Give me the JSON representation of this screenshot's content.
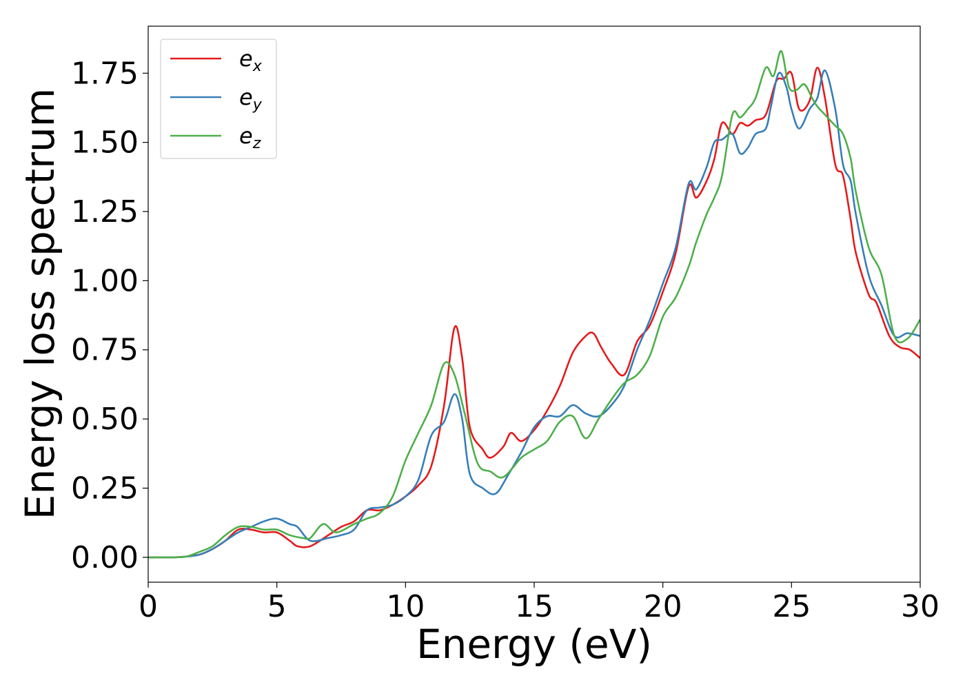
{
  "chart_data": {
    "type": "line",
    "xlabel": "Energy (eV)",
    "ylabel": "Energy loss spectrum",
    "xlim": [
      0,
      30
    ],
    "ylim": [
      -0.09,
      1.92
    ],
    "xticks": [
      0,
      5,
      10,
      15,
      20,
      25,
      30
    ],
    "xtick_labels": [
      "0",
      "5",
      "10",
      "15",
      "20",
      "25",
      "30"
    ],
    "yticks": [
      0,
      0.25,
      0.5,
      0.75,
      1.0,
      1.25,
      1.5,
      1.75
    ],
    "ytick_labels": [
      "0.00",
      "0.25",
      "0.50",
      "0.75",
      "1.00",
      "1.25",
      "1.50",
      "1.75"
    ],
    "grid": false,
    "legend_position": "top-left",
    "series": [
      {
        "name": "e_x",
        "legend_main": "e",
        "legend_sub": "x",
        "color": "#e41a1c",
        "x": [
          0,
          1,
          1.5,
          2,
          2.5,
          3,
          3.5,
          4,
          4.5,
          5,
          5.5,
          5.8,
          6.3,
          7,
          7.5,
          8,
          8.5,
          9,
          9.5,
          10,
          10.5,
          11,
          11.5,
          11.9,
          12.2,
          12.5,
          13,
          13.3,
          13.8,
          14.1,
          14.5,
          15,
          15.5,
          16,
          16.5,
          17,
          17.3,
          17.6,
          18,
          18.5,
          19,
          19.5,
          20,
          20.5,
          21,
          21.3,
          21.7,
          22,
          22.3,
          22.7,
          23,
          23.3,
          23.6,
          24,
          24.4,
          24.7,
          25,
          25.3,
          25.7,
          26,
          26.3,
          26.7,
          27,
          27.3,
          27.5,
          28,
          28.3,
          28.8,
          29.2,
          29.6,
          30
        ],
        "values": [
          0,
          0,
          0.003,
          0.01,
          0.03,
          0.06,
          0.1,
          0.1,
          0.09,
          0.09,
          0.06,
          0.04,
          0.04,
          0.08,
          0.11,
          0.13,
          0.17,
          0.17,
          0.19,
          0.22,
          0.26,
          0.33,
          0.55,
          0.83,
          0.72,
          0.47,
          0.39,
          0.36,
          0.4,
          0.45,
          0.42,
          0.46,
          0.53,
          0.62,
          0.74,
          0.8,
          0.81,
          0.76,
          0.7,
          0.66,
          0.78,
          0.84,
          0.96,
          1.1,
          1.34,
          1.3,
          1.36,
          1.44,
          1.57,
          1.53,
          1.57,
          1.56,
          1.58,
          1.6,
          1.72,
          1.73,
          1.75,
          1.62,
          1.65,
          1.77,
          1.66,
          1.42,
          1.38,
          1.22,
          1.1,
          0.95,
          0.92,
          0.8,
          0.76,
          0.75,
          0.72
        ]
      },
      {
        "name": "e_y",
        "legend_main": "e",
        "legend_sub": "y",
        "color": "#377eb8",
        "x": [
          0,
          1,
          1.5,
          2,
          2.5,
          3,
          3.5,
          4,
          4.5,
          5,
          5.5,
          5.8,
          6.3,
          7,
          7.5,
          8,
          8.5,
          9,
          9.5,
          10,
          10.5,
          11,
          11.5,
          11.9,
          12.2,
          12.5,
          13,
          13.5,
          14,
          14.5,
          15,
          15.5,
          16,
          16.5,
          17,
          17.5,
          18,
          18.5,
          19,
          19.5,
          20,
          20.5,
          21,
          21.3,
          21.7,
          22,
          22.3,
          22.7,
          23,
          23.3,
          23.6,
          24,
          24.2,
          24.5,
          24.8,
          25,
          25.3,
          25.7,
          26,
          26.3,
          26.7,
          27,
          27.3,
          27.5,
          28,
          28.5,
          29,
          29.5,
          30
        ],
        "values": [
          0,
          0,
          0.003,
          0.01,
          0.03,
          0.06,
          0.09,
          0.11,
          0.13,
          0.14,
          0.12,
          0.11,
          0.06,
          0.07,
          0.08,
          0.1,
          0.17,
          0.18,
          0.19,
          0.22,
          0.28,
          0.44,
          0.49,
          0.59,
          0.5,
          0.3,
          0.25,
          0.23,
          0.3,
          0.38,
          0.47,
          0.51,
          0.51,
          0.55,
          0.52,
          0.51,
          0.55,
          0.62,
          0.75,
          0.86,
          0.99,
          1.12,
          1.35,
          1.33,
          1.41,
          1.5,
          1.51,
          1.53,
          1.46,
          1.48,
          1.53,
          1.55,
          1.63,
          1.75,
          1.7,
          1.62,
          1.55,
          1.62,
          1.66,
          1.76,
          1.62,
          1.42,
          1.36,
          1.24,
          1.02,
          0.91,
          0.8,
          0.81,
          0.8
        ]
      },
      {
        "name": "e_z",
        "legend_main": "e",
        "legend_sub": "z",
        "color": "#4daf4a",
        "x": [
          0,
          1,
          1.5,
          2,
          2.5,
          3,
          3.5,
          4,
          4.5,
          5,
          5.5,
          6,
          6.3,
          6.8,
          7.3,
          8,
          8.5,
          9,
          9.5,
          10,
          10.5,
          11,
          11.5,
          11.9,
          12.3,
          12.8,
          13.3,
          13.8,
          14.5,
          15,
          15.5,
          16,
          16.5,
          17,
          17.5,
          18,
          18.5,
          19,
          19.5,
          20,
          20.5,
          21,
          21.3,
          21.7,
          22,
          22.3,
          22.7,
          23,
          23.3,
          23.6,
          24,
          24.3,
          24.6,
          24.9,
          25.2,
          25.5,
          25.8,
          26,
          26.3,
          26.7,
          27,
          27.3,
          27.5,
          28,
          28.5,
          29,
          29.5,
          30
        ],
        "values": [
          0,
          0,
          0.003,
          0.02,
          0.04,
          0.08,
          0.11,
          0.11,
          0.1,
          0.1,
          0.08,
          0.07,
          0.07,
          0.12,
          0.09,
          0.12,
          0.14,
          0.16,
          0.22,
          0.35,
          0.45,
          0.55,
          0.7,
          0.66,
          0.52,
          0.34,
          0.31,
          0.29,
          0.36,
          0.39,
          0.42,
          0.49,
          0.51,
          0.43,
          0.5,
          0.57,
          0.63,
          0.66,
          0.73,
          0.87,
          0.94,
          1.05,
          1.14,
          1.24,
          1.3,
          1.38,
          1.6,
          1.59,
          1.62,
          1.66,
          1.77,
          1.74,
          1.83,
          1.7,
          1.69,
          1.71,
          1.66,
          1.63,
          1.6,
          1.56,
          1.53,
          1.44,
          1.32,
          1.12,
          1.02,
          0.8,
          0.79,
          0.86
        ]
      }
    ]
  }
}
